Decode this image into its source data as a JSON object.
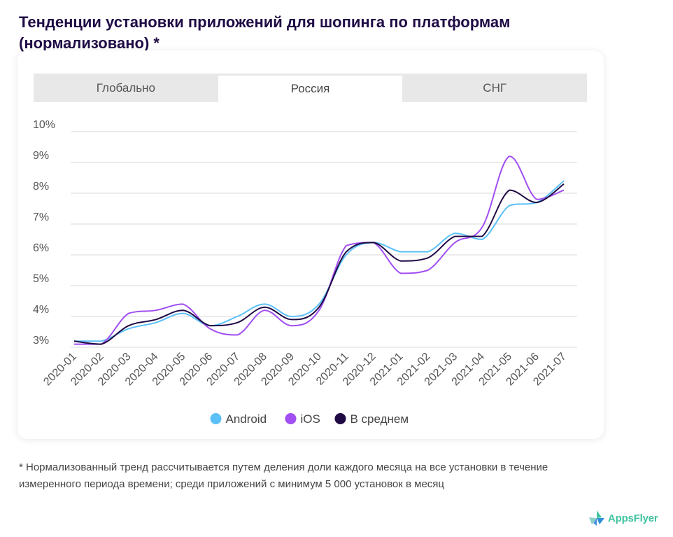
{
  "page": {
    "title": "Тенденции установки приложений для шопинга по платформам (нормализовано) *",
    "footnote": "* Нормализованный тренд рассчитывается путем деления доли каждого месяца на все установки в течение измеренного периода времени; среди приложений с минимум 5 000 установок в месяц",
    "logo_text": "AppsFlyer"
  },
  "tabs": [
    {
      "label": "Глобально",
      "active": false
    },
    {
      "label": "Россия",
      "active": true
    },
    {
      "label": "СНГ",
      "active": false
    }
  ],
  "colors": {
    "android": "#5bc0f8",
    "ios": "#a14ef2",
    "average": "#200a44",
    "grid": "#d8d8d8",
    "logo_green": "#3fc3a0",
    "logo_blue": "#4a90e2"
  },
  "chart_data": {
    "type": "line",
    "x": [
      "2020-01",
      "2020-02",
      "2020-03",
      "2020-04",
      "2020-05",
      "2020-06",
      "2020-07",
      "2020-08",
      "2020-09",
      "2020-10",
      "2020-11",
      "2020-12",
      "2021-01",
      "2021-02",
      "2021-03",
      "2021-04",
      "2021-05",
      "2021-06",
      "2021-07"
    ],
    "y_ticks": [
      "10%",
      "9%",
      "8%",
      "7%",
      "6%",
      "5%",
      "4%",
      "3%"
    ],
    "ylim": [
      3,
      10
    ],
    "series": [
      {
        "name": "Android",
        "key": "android",
        "values": [
          3.2,
          3.2,
          3.6,
          3.8,
          4.1,
          3.7,
          4.0,
          4.4,
          4.0,
          4.4,
          6.0,
          6.4,
          6.1,
          6.1,
          6.7,
          6.5,
          7.6,
          7.7,
          8.4
        ]
      },
      {
        "name": "iOS",
        "key": "ios",
        "values": [
          3.1,
          3.1,
          4.1,
          4.2,
          4.4,
          3.6,
          3.4,
          4.2,
          3.7,
          4.2,
          6.3,
          6.4,
          5.4,
          5.5,
          6.4,
          6.9,
          9.2,
          7.8,
          8.1
        ]
      },
      {
        "name": "В среднем",
        "key": "average",
        "values": [
          3.2,
          3.1,
          3.7,
          3.9,
          4.2,
          3.7,
          3.8,
          4.3,
          3.9,
          4.3,
          6.1,
          6.4,
          5.8,
          5.9,
          6.6,
          6.6,
          8.1,
          7.7,
          8.3
        ]
      }
    ],
    "legend": "bottom-center",
    "grid": true
  }
}
